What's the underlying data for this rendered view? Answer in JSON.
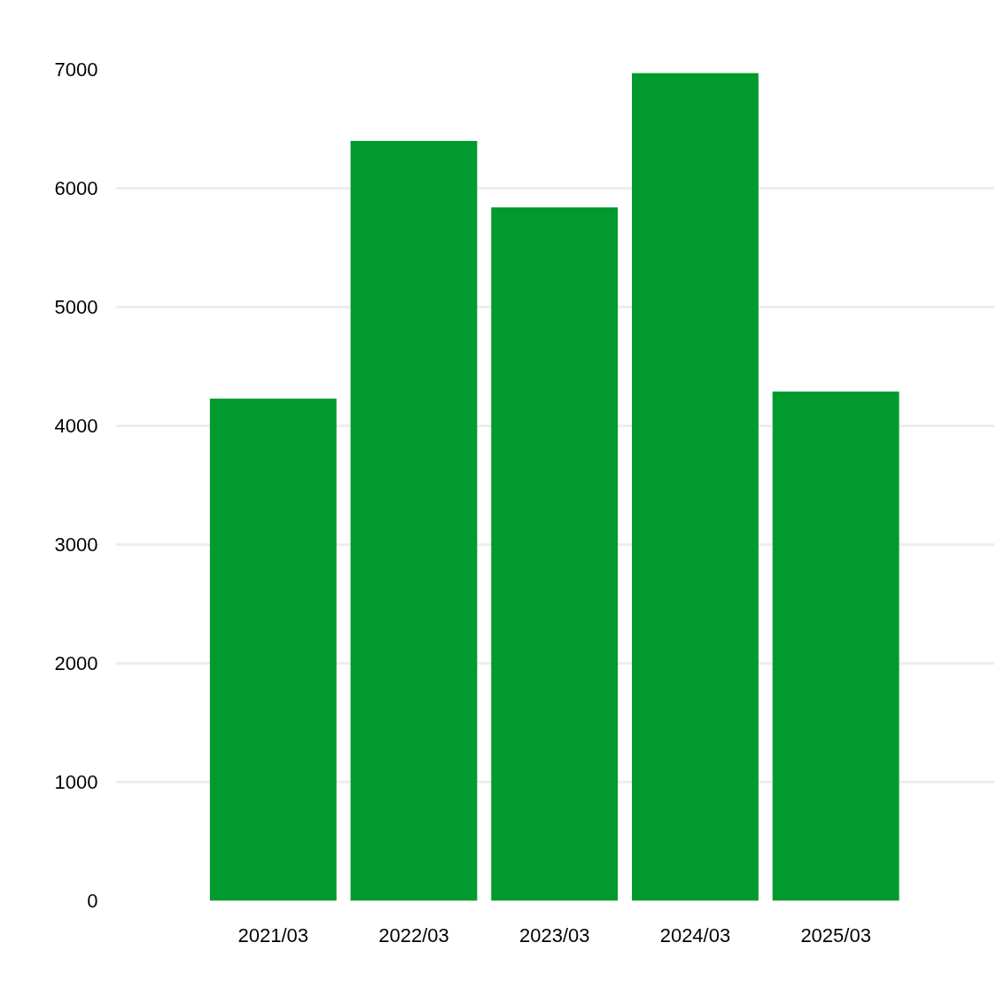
{
  "chart_data": {
    "type": "bar",
    "categories": [
      "2021/03",
      "2022/03",
      "2023/03",
      "2024/03",
      "2025/03"
    ],
    "values": [
      4230,
      6400,
      5840,
      6970,
      4290
    ],
    "color": "#009a2e",
    "ylim": [
      0,
      7000
    ],
    "yticks": [
      0,
      1000,
      2000,
      3000,
      4000,
      5000,
      6000,
      7000
    ],
    "grid": "y"
  }
}
